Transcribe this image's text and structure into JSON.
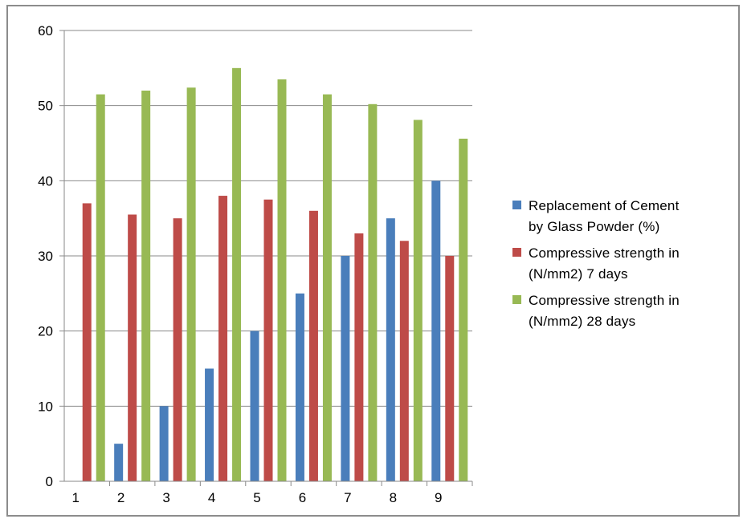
{
  "chart_data": {
    "type": "bar",
    "categories": [
      "1",
      "2",
      "3",
      "4",
      "5",
      "6",
      "7",
      "8",
      "9"
    ],
    "series": [
      {
        "name": "Replacement of Cement by Glass Powder (%)",
        "name_lines": [
          "Replacement of Cement",
          "by Glass Powder (%)"
        ],
        "color": "#4a7ebb",
        "values": [
          0,
          5,
          10,
          15,
          20,
          25,
          30,
          35,
          40
        ]
      },
      {
        "name": "Compressive strength in (N/mm2) 7 days",
        "name_lines": [
          "Compressive strength in",
          "(N/mm2) 7 days"
        ],
        "color": "#be4b48",
        "values": [
          37,
          35.5,
          35,
          38,
          37.5,
          36,
          33,
          32,
          30
        ]
      },
      {
        "name": "Compressive strength in (N/mm2) 28 days",
        "name_lines": [
          "Compressive strength in",
          "(N/mm2) 28 days"
        ],
        "color": "#98b954",
        "values": [
          51.5,
          52,
          52.4,
          55,
          53.5,
          51.5,
          50.2,
          48.1,
          45.6
        ]
      }
    ],
    "yticks": [
      "0",
      "10",
      "20",
      "30",
      "40",
      "50",
      "60"
    ],
    "ylim": [
      0,
      60
    ],
    "grid": true,
    "legend": "right"
  }
}
